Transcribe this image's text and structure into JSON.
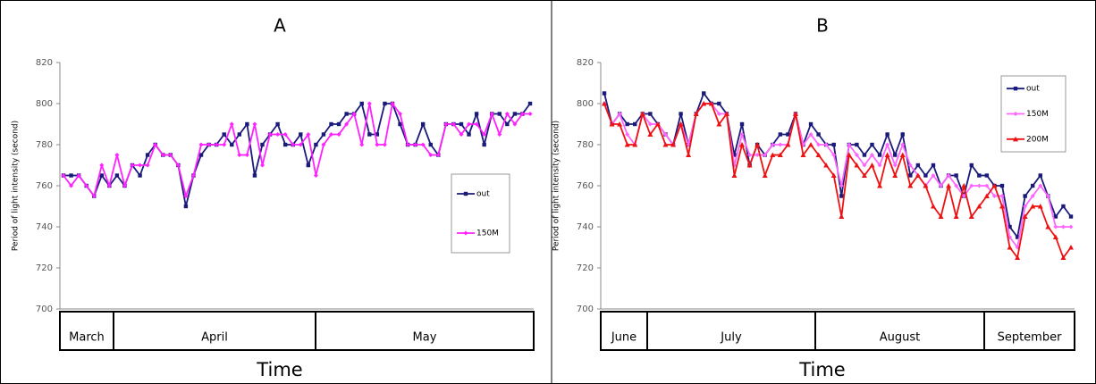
{
  "chart_data": [
    {
      "type": "line",
      "title": "A",
      "xlabel": "Time",
      "ylabel": "Period of light intensity (second)",
      "months": [
        "March",
        "April",
        "May"
      ],
      "ylim": [
        700,
        820
      ],
      "yticks": [
        700,
        720,
        740,
        760,
        780,
        800,
        820
      ],
      "series": [
        {
          "name": "out",
          "color": "#1a1a7a",
          "marker": "square",
          "values": [
            765,
            765,
            765,
            760,
            755,
            765,
            760,
            765,
            760,
            770,
            765,
            775,
            780,
            775,
            775,
            770,
            750,
            765,
            775,
            780,
            780,
            785,
            780,
            785,
            790,
            765,
            780,
            785,
            790,
            780,
            780,
            785,
            770,
            780,
            785,
            790,
            790,
            795,
            795,
            800,
            785,
            785,
            800,
            800,
            790,
            780,
            780,
            790,
            780,
            775,
            790,
            790,
            790,
            785,
            795,
            780,
            795,
            795,
            790,
            795,
            795,
            800
          ]
        },
        {
          "name": "150M",
          "color": "#ff22ff",
          "marker": "diamond",
          "values": [
            765,
            760,
            765,
            760,
            755,
            770,
            760,
            775,
            760,
            770,
            770,
            770,
            780,
            775,
            775,
            770,
            755,
            765,
            780,
            780,
            780,
            780,
            790,
            775,
            775,
            790,
            770,
            785,
            785,
            785,
            780,
            780,
            785,
            765,
            780,
            785,
            785,
            790,
            795,
            780,
            800,
            780,
            780,
            800,
            795,
            780,
            780,
            780,
            775,
            775,
            790,
            790,
            785,
            790,
            790,
            785,
            795,
            785,
            795,
            790,
            795,
            795
          ]
        }
      ]
    },
    {
      "type": "line",
      "title": "B",
      "xlabel": "Time",
      "ylabel": "Period of light intensity (second)",
      "months": [
        "June",
        "July",
        "August",
        "September"
      ],
      "ylim": [
        700,
        820
      ],
      "yticks": [
        700,
        720,
        740,
        760,
        780,
        800,
        820
      ],
      "series": [
        {
          "name": "out",
          "color": "#1a1a7a",
          "marker": "square",
          "values": [
            805,
            790,
            795,
            790,
            790,
            795,
            795,
            790,
            785,
            780,
            795,
            780,
            795,
            805,
            800,
            800,
            795,
            775,
            790,
            770,
            780,
            775,
            780,
            785,
            785,
            795,
            780,
            790,
            785,
            780,
            780,
            755,
            780,
            780,
            775,
            780,
            775,
            785,
            775,
            785,
            765,
            770,
            765,
            770,
            760,
            765,
            765,
            755,
            770,
            765,
            765,
            760,
            760,
            740,
            735,
            755,
            760,
            765,
            755,
            745,
            750,
            745
          ]
        },
        {
          "name": "150M",
          "color": "#ff66ff",
          "marker": "diamond",
          "values": [
            800,
            790,
            795,
            785,
            780,
            795,
            790,
            790,
            785,
            780,
            790,
            780,
            795,
            800,
            800,
            795,
            795,
            770,
            785,
            775,
            775,
            775,
            780,
            780,
            780,
            795,
            780,
            785,
            780,
            780,
            775,
            760,
            780,
            775,
            770,
            775,
            770,
            780,
            770,
            780,
            770,
            765,
            760,
            765,
            760,
            765,
            760,
            755,
            760,
            760,
            760,
            755,
            755,
            735,
            730,
            750,
            755,
            760,
            755,
            740,
            740,
            740
          ]
        },
        {
          "name": "200M",
          "color": "#ee1111",
          "marker": "triangle",
          "values": [
            800,
            790,
            790,
            780,
            780,
            795,
            785,
            790,
            780,
            780,
            790,
            775,
            795,
            800,
            800,
            790,
            795,
            765,
            780,
            770,
            780,
            765,
            775,
            775,
            780,
            795,
            775,
            780,
            775,
            770,
            765,
            745,
            775,
            770,
            765,
            770,
            760,
            775,
            765,
            775,
            760,
            765,
            760,
            750,
            745,
            760,
            745,
            760,
            745,
            750,
            755,
            760,
            750,
            730,
            725,
            745,
            750,
            750,
            740,
            735,
            725,
            730
          ]
        }
      ]
    }
  ]
}
